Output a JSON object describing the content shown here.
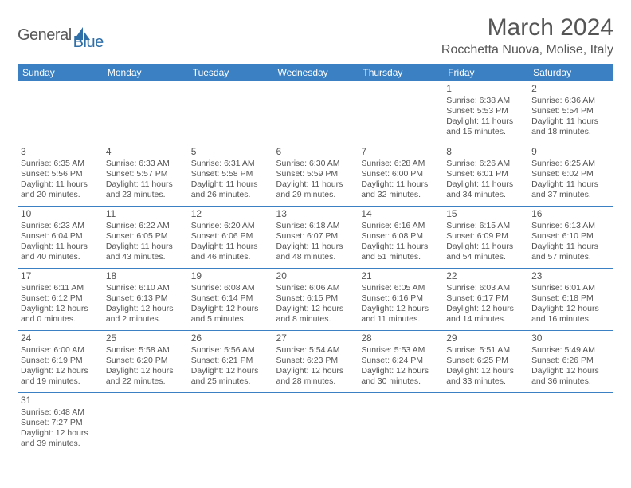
{
  "logo": {
    "general": "General",
    "blue": "Blue"
  },
  "title": "March 2024",
  "location": "Rocchetta Nuova, Molise, Italy",
  "colors": {
    "header_bg": "#3a80c3",
    "header_text": "#ffffff",
    "text": "#555555",
    "rule": "#3a80c3",
    "logo_blue": "#2f6fa8"
  },
  "dayHeaders": [
    "Sunday",
    "Monday",
    "Tuesday",
    "Wednesday",
    "Thursday",
    "Friday",
    "Saturday"
  ],
  "weeks": [
    [
      null,
      null,
      null,
      null,
      null,
      {
        "n": "1",
        "sr": "Sunrise: 6:38 AM",
        "ss": "Sunset: 5:53 PM",
        "d1": "Daylight: 11 hours",
        "d2": "and 15 minutes."
      },
      {
        "n": "2",
        "sr": "Sunrise: 6:36 AM",
        "ss": "Sunset: 5:54 PM",
        "d1": "Daylight: 11 hours",
        "d2": "and 18 minutes."
      }
    ],
    [
      {
        "n": "3",
        "sr": "Sunrise: 6:35 AM",
        "ss": "Sunset: 5:56 PM",
        "d1": "Daylight: 11 hours",
        "d2": "and 20 minutes."
      },
      {
        "n": "4",
        "sr": "Sunrise: 6:33 AM",
        "ss": "Sunset: 5:57 PM",
        "d1": "Daylight: 11 hours",
        "d2": "and 23 minutes."
      },
      {
        "n": "5",
        "sr": "Sunrise: 6:31 AM",
        "ss": "Sunset: 5:58 PM",
        "d1": "Daylight: 11 hours",
        "d2": "and 26 minutes."
      },
      {
        "n": "6",
        "sr": "Sunrise: 6:30 AM",
        "ss": "Sunset: 5:59 PM",
        "d1": "Daylight: 11 hours",
        "d2": "and 29 minutes."
      },
      {
        "n": "7",
        "sr": "Sunrise: 6:28 AM",
        "ss": "Sunset: 6:00 PM",
        "d1": "Daylight: 11 hours",
        "d2": "and 32 minutes."
      },
      {
        "n": "8",
        "sr": "Sunrise: 6:26 AM",
        "ss": "Sunset: 6:01 PM",
        "d1": "Daylight: 11 hours",
        "d2": "and 34 minutes."
      },
      {
        "n": "9",
        "sr": "Sunrise: 6:25 AM",
        "ss": "Sunset: 6:02 PM",
        "d1": "Daylight: 11 hours",
        "d2": "and 37 minutes."
      }
    ],
    [
      {
        "n": "10",
        "sr": "Sunrise: 6:23 AM",
        "ss": "Sunset: 6:04 PM",
        "d1": "Daylight: 11 hours",
        "d2": "and 40 minutes."
      },
      {
        "n": "11",
        "sr": "Sunrise: 6:22 AM",
        "ss": "Sunset: 6:05 PM",
        "d1": "Daylight: 11 hours",
        "d2": "and 43 minutes."
      },
      {
        "n": "12",
        "sr": "Sunrise: 6:20 AM",
        "ss": "Sunset: 6:06 PM",
        "d1": "Daylight: 11 hours",
        "d2": "and 46 minutes."
      },
      {
        "n": "13",
        "sr": "Sunrise: 6:18 AM",
        "ss": "Sunset: 6:07 PM",
        "d1": "Daylight: 11 hours",
        "d2": "and 48 minutes."
      },
      {
        "n": "14",
        "sr": "Sunrise: 6:16 AM",
        "ss": "Sunset: 6:08 PM",
        "d1": "Daylight: 11 hours",
        "d2": "and 51 minutes."
      },
      {
        "n": "15",
        "sr": "Sunrise: 6:15 AM",
        "ss": "Sunset: 6:09 PM",
        "d1": "Daylight: 11 hours",
        "d2": "and 54 minutes."
      },
      {
        "n": "16",
        "sr": "Sunrise: 6:13 AM",
        "ss": "Sunset: 6:10 PM",
        "d1": "Daylight: 11 hours",
        "d2": "and 57 minutes."
      }
    ],
    [
      {
        "n": "17",
        "sr": "Sunrise: 6:11 AM",
        "ss": "Sunset: 6:12 PM",
        "d1": "Daylight: 12 hours",
        "d2": "and 0 minutes."
      },
      {
        "n": "18",
        "sr": "Sunrise: 6:10 AM",
        "ss": "Sunset: 6:13 PM",
        "d1": "Daylight: 12 hours",
        "d2": "and 2 minutes."
      },
      {
        "n": "19",
        "sr": "Sunrise: 6:08 AM",
        "ss": "Sunset: 6:14 PM",
        "d1": "Daylight: 12 hours",
        "d2": "and 5 minutes."
      },
      {
        "n": "20",
        "sr": "Sunrise: 6:06 AM",
        "ss": "Sunset: 6:15 PM",
        "d1": "Daylight: 12 hours",
        "d2": "and 8 minutes."
      },
      {
        "n": "21",
        "sr": "Sunrise: 6:05 AM",
        "ss": "Sunset: 6:16 PM",
        "d1": "Daylight: 12 hours",
        "d2": "and 11 minutes."
      },
      {
        "n": "22",
        "sr": "Sunrise: 6:03 AM",
        "ss": "Sunset: 6:17 PM",
        "d1": "Daylight: 12 hours",
        "d2": "and 14 minutes."
      },
      {
        "n": "23",
        "sr": "Sunrise: 6:01 AM",
        "ss": "Sunset: 6:18 PM",
        "d1": "Daylight: 12 hours",
        "d2": "and 16 minutes."
      }
    ],
    [
      {
        "n": "24",
        "sr": "Sunrise: 6:00 AM",
        "ss": "Sunset: 6:19 PM",
        "d1": "Daylight: 12 hours",
        "d2": "and 19 minutes."
      },
      {
        "n": "25",
        "sr": "Sunrise: 5:58 AM",
        "ss": "Sunset: 6:20 PM",
        "d1": "Daylight: 12 hours",
        "d2": "and 22 minutes."
      },
      {
        "n": "26",
        "sr": "Sunrise: 5:56 AM",
        "ss": "Sunset: 6:21 PM",
        "d1": "Daylight: 12 hours",
        "d2": "and 25 minutes."
      },
      {
        "n": "27",
        "sr": "Sunrise: 5:54 AM",
        "ss": "Sunset: 6:23 PM",
        "d1": "Daylight: 12 hours",
        "d2": "and 28 minutes."
      },
      {
        "n": "28",
        "sr": "Sunrise: 5:53 AM",
        "ss": "Sunset: 6:24 PM",
        "d1": "Daylight: 12 hours",
        "d2": "and 30 minutes."
      },
      {
        "n": "29",
        "sr": "Sunrise: 5:51 AM",
        "ss": "Sunset: 6:25 PM",
        "d1": "Daylight: 12 hours",
        "d2": "and 33 minutes."
      },
      {
        "n": "30",
        "sr": "Sunrise: 5:49 AM",
        "ss": "Sunset: 6:26 PM",
        "d1": "Daylight: 12 hours",
        "d2": "and 36 minutes."
      }
    ],
    [
      {
        "n": "31",
        "sr": "Sunrise: 6:48 AM",
        "ss": "Sunset: 7:27 PM",
        "d1": "Daylight: 12 hours",
        "d2": "and 39 minutes."
      },
      null,
      null,
      null,
      null,
      null,
      null
    ]
  ]
}
